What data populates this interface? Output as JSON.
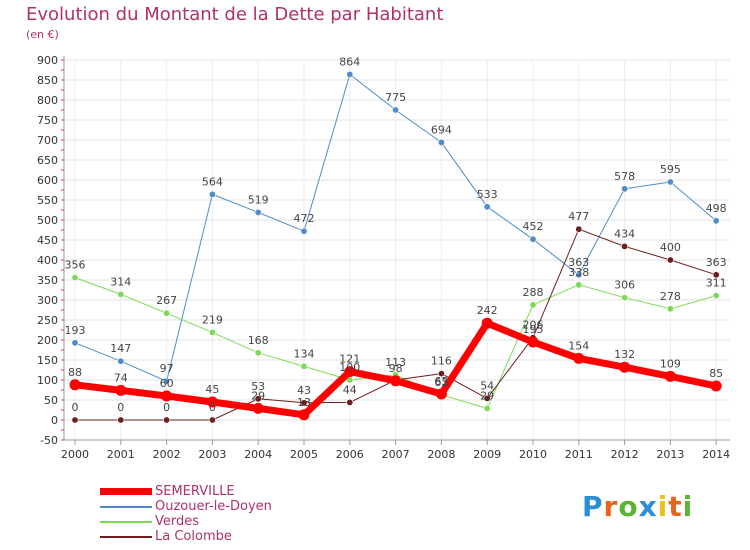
{
  "title": "Evolution du Montant de la Dette par Habitant",
  "unit": "(en €)",
  "brand": {
    "letters": [
      "P",
      "r",
      "o",
      "x",
      "i",
      "t",
      "i"
    ],
    "colors": [
      "#2a8ed6",
      "#e8641e",
      "#5ab52e",
      "#2a8ed6",
      "#e8c21e",
      "#e8641e",
      "#5ab52e"
    ]
  },
  "chart_data": {
    "type": "line",
    "x": [
      "2000",
      "2001",
      "2002",
      "2003",
      "2004",
      "2005",
      "2006",
      "2007",
      "2008",
      "2009",
      "2010",
      "2011",
      "2012",
      "2013",
      "2014"
    ],
    "ylim": [
      -50,
      900
    ],
    "yticks": [
      -50,
      0,
      50,
      100,
      150,
      200,
      250,
      300,
      350,
      400,
      450,
      500,
      550,
      600,
      650,
      700,
      750,
      800,
      850,
      900
    ],
    "grid": true,
    "legend": "bottom-left",
    "series": [
      {
        "name": "SEMERVILLE",
        "color": "#ff0000",
        "width": 7,
        "values": [
          88,
          74,
          60,
          45,
          29,
          13,
          121,
          98,
          65,
          242,
          195,
          154,
          132,
          109,
          85
        ],
        "labels": [
          "88",
          "74",
          "60",
          "45",
          "29",
          "13",
          "121",
          "98",
          "65",
          "242",
          "195",
          "154",
          "132",
          "109",
          "85"
        ]
      },
      {
        "name": "Ouzouer-le-Doyen",
        "color": "#4f8dc7",
        "width": 1,
        "values": [
          193,
          147,
          97,
          564,
          519,
          472,
          864,
          775,
          694,
          533,
          452,
          363,
          578,
          595,
          498
        ],
        "labels": [
          "193",
          "147",
          "97",
          "564",
          "519",
          "472",
          "864",
          "775",
          "694",
          "533",
          "452",
          "363",
          "578",
          "595",
          "498"
        ]
      },
      {
        "name": "Verdes",
        "color": "#7ed957",
        "width": 1,
        "values": [
          356,
          314,
          267,
          219,
          168,
          134,
          100,
          113,
          63,
          29,
          288,
          338,
          306,
          278,
          311
        ],
        "labels": [
          "356",
          "314",
          "267",
          "219",
          "168",
          "134",
          "100",
          "113",
          "63",
          "29",
          "288",
          "338",
          "306",
          "278",
          "311"
        ]
      },
      {
        "name": "La Colombe",
        "color": "#6b1f1f",
        "width": 1,
        "values": [
          0,
          0,
          0,
          0,
          53,
          43,
          44,
          100,
          116,
          54,
          206,
          477,
          434,
          400,
          363
        ],
        "labels": [
          "0",
          "0",
          "0",
          "0",
          "53",
          "43",
          "44",
          "",
          "116",
          "54",
          "206",
          "477",
          "434",
          "400",
          "363"
        ]
      }
    ]
  }
}
